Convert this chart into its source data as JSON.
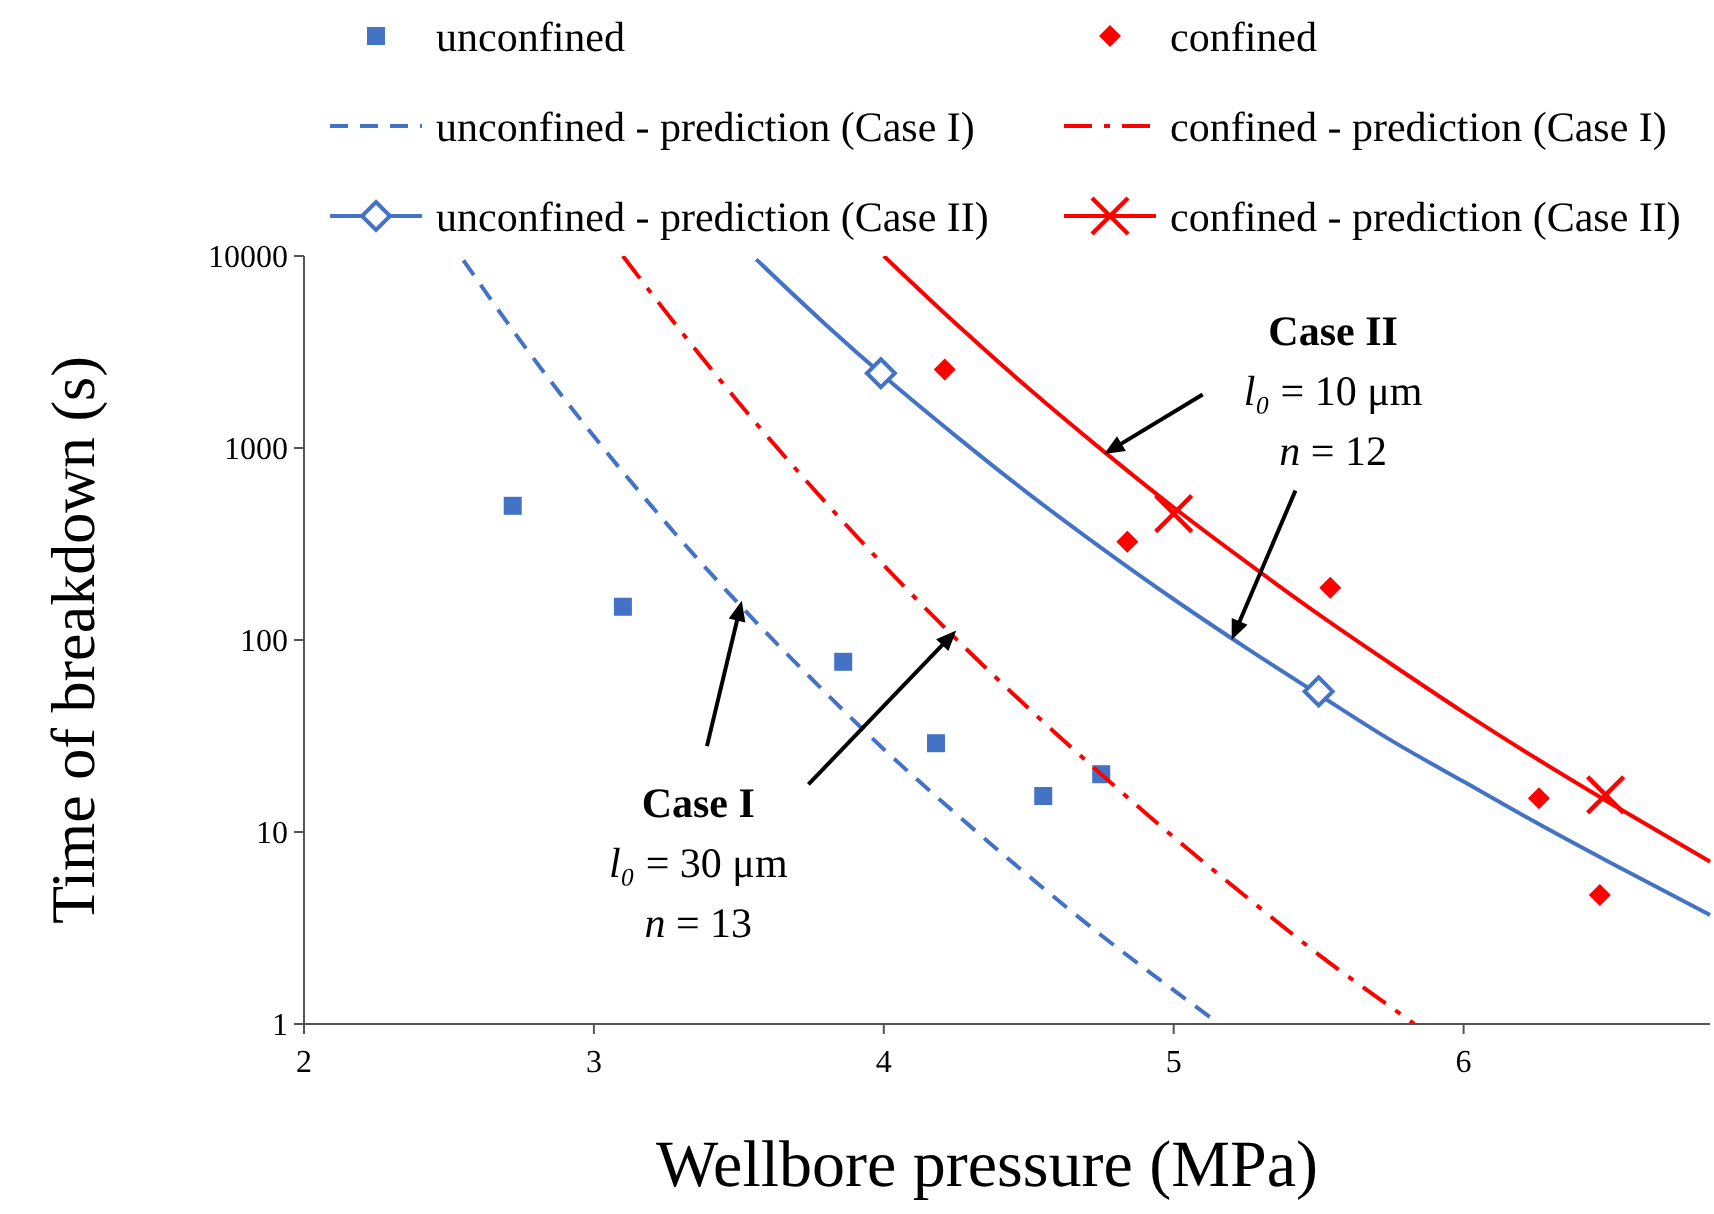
{
  "chart_data": {
    "type": "scatter",
    "xlabel": "Wellbore pressure (MPa)",
    "ylabel": "Time of breakdown (s)",
    "log": "y",
    "xlim": [
      2,
      6.85
    ],
    "xticks": [
      2,
      3,
      4,
      5,
      6
    ],
    "ylim": [
      1,
      10000
    ],
    "yticks": [
      1,
      10,
      100,
      1000,
      10000
    ],
    "grid": false,
    "legend": "top",
    "series": [
      {
        "name": "unconfined",
        "marker": "square",
        "color": "#4472c4",
        "x": [
          2.72,
          3.1,
          3.86,
          4.18,
          4.55,
          4.75
        ],
        "values": [
          500,
          149,
          77,
          29,
          15.4,
          20
        ]
      },
      {
        "name": "confined",
        "marker": "diamond",
        "color": "#ff0000",
        "x": [
          4.21,
          4.84,
          5.54,
          6.26,
          6.47
        ],
        "values": [
          2560,
          325,
          187,
          15,
          4.7
        ]
      },
      {
        "name": "unconfined - prediction (Case I)",
        "type": "line",
        "line_style": "dashed",
        "marker": "none",
        "color": "#4472c4",
        "x": [
          2.55,
          2.75,
          3.0,
          3.25,
          3.5,
          3.75,
          4.0,
          4.25,
          4.5,
          4.75,
          5.0,
          5.15
        ],
        "values": [
          9500,
          3560,
          1150,
          405,
          154,
          63,
          27,
          12.4,
          5.9,
          2.9,
          1.5,
          1.02
        ]
      },
      {
        "name": "confined - prediction (Case I)",
        "type": "line",
        "line_style": "dashdot",
        "marker": "none",
        "color": "#ff0000",
        "x": [
          3.1,
          3.25,
          3.5,
          3.75,
          4.0,
          4.25,
          4.5,
          4.75,
          5.0,
          5.25,
          5.5,
          5.75,
          5.83
        ],
        "values": [
          10000,
          5070,
          1720,
          630,
          245,
          101,
          44,
          20,
          9.4,
          4.6,
          2.3,
          1.22,
          1.0
        ]
      },
      {
        "name": "unconfined - prediction (Case II)",
        "type": "line",
        "line_style": "solid",
        "marker": "none",
        "color": "#4472c4",
        "x": [
          3.56,
          3.8,
          4.0,
          4.25,
          4.5,
          4.75,
          5.0,
          5.25,
          5.5,
          5.75,
          6.0,
          6.25,
          6.5,
          6.85
        ],
        "values": [
          9600,
          4390,
          2370,
          1150,
          577,
          302,
          163,
          91,
          52,
          30,
          18.3,
          11.2,
          7.0,
          3.7
        ]
      },
      {
        "marker": "diamond",
        "color": "#4472c4",
        "x": [
          3.99,
          5.5
        ],
        "values": [
          2450,
          54
        ]
      },
      {
        "name": "confined - prediction (Case II)",
        "type": "line",
        "line_style": "solid",
        "marker": "none",
        "color": "#ff0000",
        "x": [
          4.0,
          4.25,
          4.5,
          4.75,
          5.0,
          5.25,
          5.5,
          5.75,
          6.0,
          6.25,
          6.5,
          6.85
        ],
        "values": [
          10000,
          4420,
          2040,
          984,
          490,
          255,
          136,
          75,
          42,
          24.2,
          14.3,
          7.0
        ]
      },
      {
        "marker": "cross",
        "color": "#ff0000",
        "x": [
          5.0,
          6.49
        ],
        "values": [
          455,
          15.6
        ]
      }
    ],
    "annotations": [
      {
        "text": "Case II\nl₀ = 10 μm\nn = 12",
        "x": 4.76,
        "y": 930
      },
      {
        "text": "Case I\nl₀ = 30 μm\nn = 13",
        "x": 3.51,
        "y": 160
      }
    ]
  }
}
